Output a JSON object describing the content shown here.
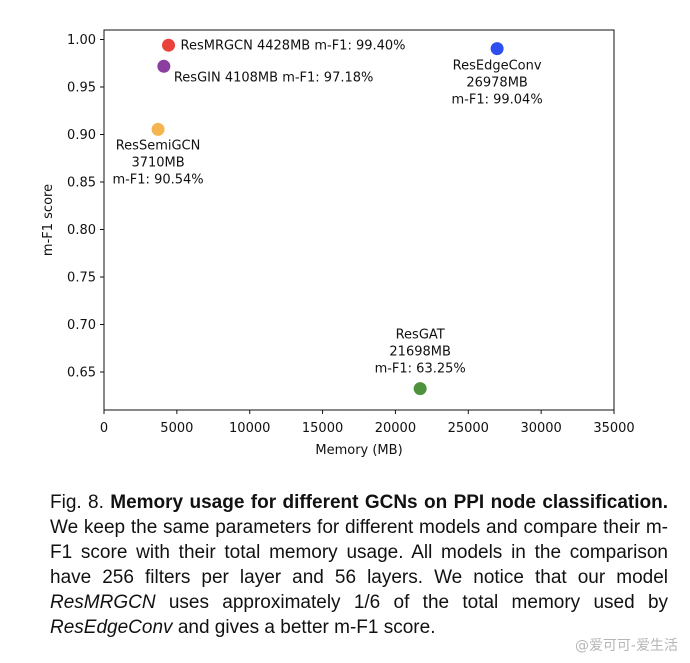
{
  "colors": {
    "ResMRGCN": "#e8423a",
    "ResGIN": "#8a3ea0",
    "ResSemiGCN": "#f4b44e",
    "ResEdgeConv": "#2d4ff0",
    "ResGAT": "#4e923e"
  },
  "chart_data": {
    "type": "scatter",
    "title": "",
    "xlabel": "Memory (MB)",
    "ylabel": "m-F1 score",
    "xlim": [
      0,
      35000
    ],
    "ylim": [
      0.61,
      1.01
    ],
    "xticks": [
      0,
      5000,
      10000,
      15000,
      20000,
      25000,
      30000,
      35000
    ],
    "yticks": [
      0.65,
      0.7,
      0.75,
      0.8,
      0.85,
      0.9,
      0.95,
      1.0
    ],
    "xtick_labels": [
      "0",
      "5000",
      "10000",
      "15000",
      "20000",
      "25000",
      "30000",
      "35000"
    ],
    "ytick_labels": [
      "0.65",
      "0.70",
      "0.75",
      "0.80",
      "0.85",
      "0.90",
      "0.95",
      "1.00"
    ],
    "grid": false,
    "legend": "none",
    "points": [
      {
        "name": "ResMRGCN",
        "x": 4428,
        "y": 0.994,
        "label_lines": [
          "ResMRGCN 4428MB m-F1: 99.40%"
        ]
      },
      {
        "name": "ResGIN",
        "x": 4108,
        "y": 0.9718,
        "label_lines": [
          "ResGIN 4108MB m-F1: 97.18%"
        ]
      },
      {
        "name": "ResSemiGCN",
        "x": 3710,
        "y": 0.9054,
        "label_lines": [
          "ResSemiGCN",
          "3710MB",
          "m-F1: 90.54%"
        ]
      },
      {
        "name": "ResEdgeConv",
        "x": 26978,
        "y": 0.9904,
        "label_lines": [
          "ResEdgeConv",
          "26978MB",
          "m-F1: 99.04%"
        ]
      },
      {
        "name": "ResGAT",
        "x": 21698,
        "y": 0.6325,
        "label_lines": [
          "ResGAT",
          "21698MB",
          "m-F1: 63.25%"
        ]
      }
    ]
  },
  "caption": {
    "fig_number": "Fig. 8.",
    "title": "Memory usage for different GCNs on PPI node classification.",
    "text_1": "We keep the same parameters for different models and compare their m-F1 score with their total memory usage. All models in the comparison have 256 filters per layer and 56 layers. We notice that our model",
    "model_1": "ResMRGCN",
    "text_2": "uses approximately 1/6 of the total memory used by",
    "model_2": "ResEdgeConv",
    "text_3": "and gives a better m-F1 score."
  },
  "watermark": "@爱可可-爱生活"
}
